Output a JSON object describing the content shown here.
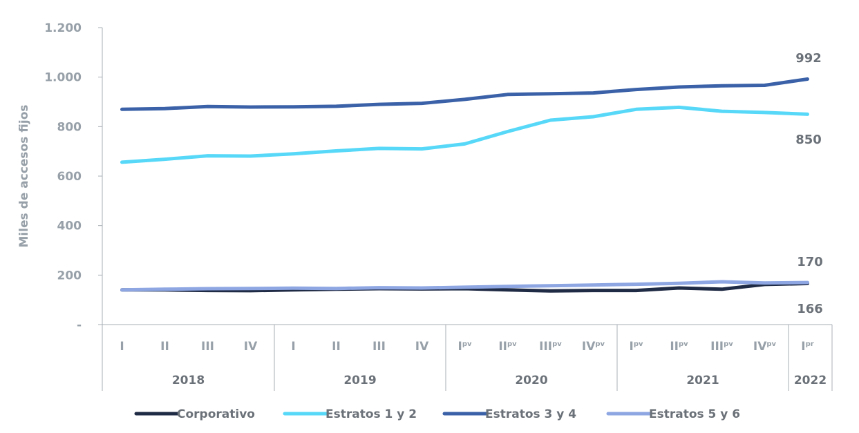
{
  "chart_data": {
    "type": "line",
    "ylabel": "Miles de accesos fijos",
    "ylim": [
      0,
      1200
    ],
    "yticks": [
      {
        "value": 0,
        "label": "-"
      },
      {
        "value": 200,
        "label": "200"
      },
      {
        "value": 400,
        "label": "400"
      },
      {
        "value": 600,
        "label": "600"
      },
      {
        "value": 800,
        "label": "800"
      },
      {
        "value": 1000,
        "label": "1.000"
      },
      {
        "value": 1200,
        "label": "1.200"
      }
    ],
    "categories": [
      {
        "label": "I",
        "sup": ""
      },
      {
        "label": "II",
        "sup": ""
      },
      {
        "label": "III",
        "sup": ""
      },
      {
        "label": "IV",
        "sup": ""
      },
      {
        "label": "I",
        "sup": ""
      },
      {
        "label": "II",
        "sup": ""
      },
      {
        "label": "III",
        "sup": ""
      },
      {
        "label": "IV",
        "sup": ""
      },
      {
        "label": "I",
        "sup": "pv"
      },
      {
        "label": "II",
        "sup": "pv"
      },
      {
        "label": "III",
        "sup": "pv"
      },
      {
        "label": "IV",
        "sup": "pv"
      },
      {
        "label": "I",
        "sup": "pv"
      },
      {
        "label": "II",
        "sup": "pv"
      },
      {
        "label": "III",
        "sup": "pv"
      },
      {
        "label": "IV",
        "sup": "pv"
      },
      {
        "label": "I",
        "sup": "pr"
      }
    ],
    "years": [
      {
        "label": "2018",
        "quarters": 4
      },
      {
        "label": "2019",
        "quarters": 4
      },
      {
        "label": "2020",
        "quarters": 4
      },
      {
        "label": "2021",
        "quarters": 4
      },
      {
        "label": "2022",
        "quarters": 1
      }
    ],
    "series": [
      {
        "name": "Corporativo",
        "color": "#1f2a44",
        "values": [
          140,
          140,
          138,
          137,
          140,
          143,
          145,
          144,
          145,
          140,
          136,
          138,
          138,
          148,
          143,
          162,
          166
        ]
      },
      {
        "name": "Estratos 1 y 2",
        "color": "#57d8f8",
        "values": [
          656,
          668,
          682,
          681,
          690,
          702,
          712,
          710,
          730,
          780,
          826,
          840,
          870,
          878,
          862,
          857,
          850
        ]
      },
      {
        "name": "Estratos 3 y 4",
        "color": "#3b62a8",
        "values": [
          870,
          873,
          881,
          879,
          880,
          882,
          890,
          894,
          910,
          930,
          933,
          936,
          950,
          960,
          965,
          967,
          992
        ]
      },
      {
        "name": "Estratos 5 y 6",
        "color": "#8ea7e3",
        "values": [
          140,
          143,
          145,
          146,
          147,
          146,
          149,
          148,
          151,
          154,
          157,
          160,
          163,
          167,
          173,
          168,
          170
        ]
      }
    ],
    "end_labels": [
      {
        "series": "Estratos 3 y 4",
        "text": "992"
      },
      {
        "series": "Estratos 1 y 2",
        "text": "850"
      },
      {
        "series": "Estratos 5 y 6",
        "text": "170"
      },
      {
        "series": "Corporativo",
        "text": "166"
      }
    ],
    "grid": false,
    "legend_position": "bottom"
  }
}
